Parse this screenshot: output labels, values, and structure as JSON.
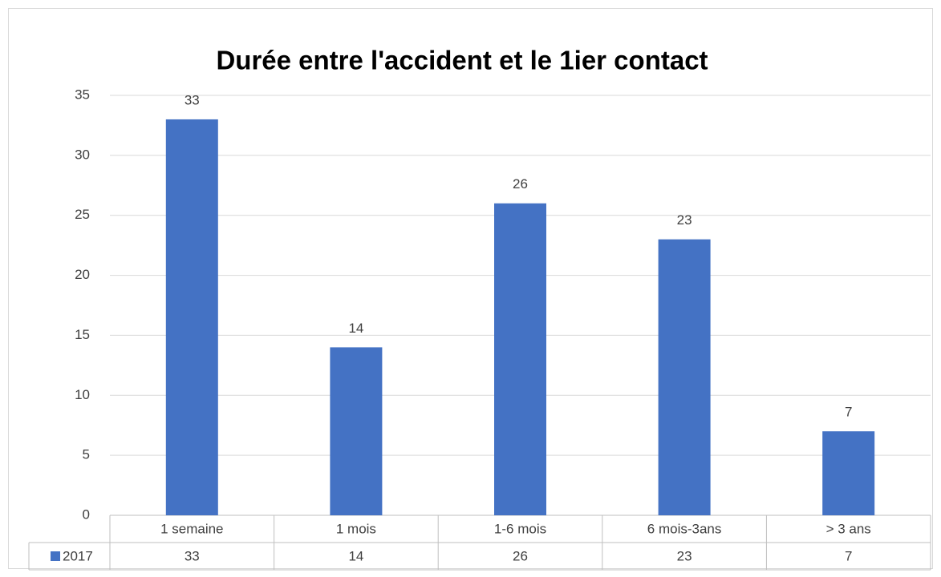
{
  "chart_data": {
    "type": "bar",
    "title": "Durée entre l'accident et le 1ier contact",
    "categories": [
      "1 semaine",
      "1 mois",
      "1-6 mois",
      "6 mois-3ans",
      "> 3 ans"
    ],
    "series": [
      {
        "name": "2017",
        "color": "#4472c4",
        "values": [
          33,
          14,
          26,
          23,
          7
        ]
      }
    ],
    "ylim": [
      0,
      35
    ],
    "yticks": [
      0,
      5,
      10,
      15,
      20,
      25,
      30,
      35
    ],
    "grid": true,
    "data_table": true
  }
}
